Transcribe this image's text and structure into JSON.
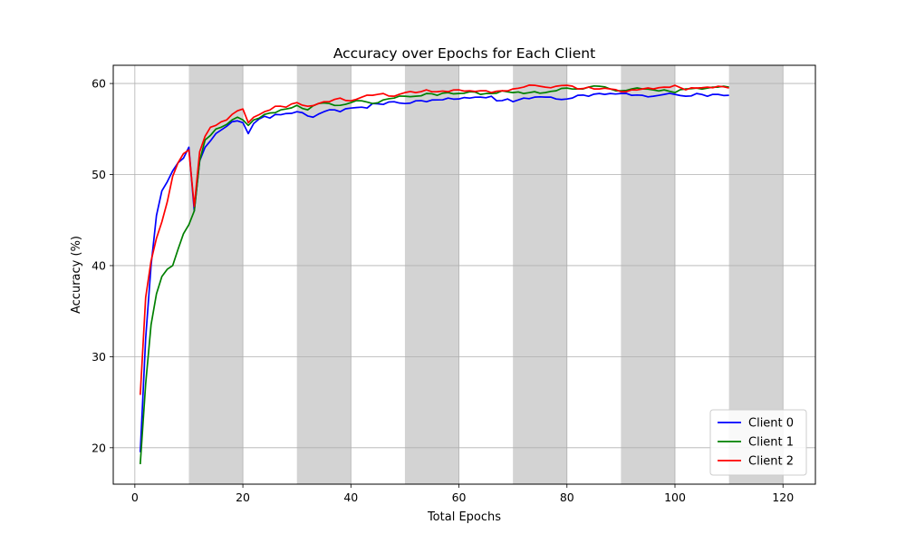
{
  "chart_data": {
    "type": "line",
    "title": "Accuracy over Epochs for Each Client",
    "xlabel": "Total Epochs",
    "ylabel": "Accuracy (%)",
    "xlim": [
      -4,
      126
    ],
    "ylim": [
      16,
      62
    ],
    "xticks": [
      0,
      20,
      40,
      60,
      80,
      100,
      120
    ],
    "yticks": [
      20,
      30,
      40,
      50,
      60
    ],
    "grid": true,
    "legend_position": "bottom-right",
    "shaded_bands": [
      [
        10,
        20
      ],
      [
        30,
        40
      ],
      [
        50,
        60
      ],
      [
        70,
        80
      ],
      [
        90,
        100
      ],
      [
        110,
        120
      ]
    ],
    "shade_color": "#d3d3d3",
    "series": [
      {
        "name": "Client 0",
        "color": "#0000ff",
        "keypoints": [
          [
            1,
            19.5
          ],
          [
            2,
            32
          ],
          [
            3,
            40
          ],
          [
            4,
            45.5
          ],
          [
            5,
            48.2
          ],
          [
            6,
            49.2
          ],
          [
            7,
            50.4
          ],
          [
            8,
            51.3
          ],
          [
            9,
            51.8
          ],
          [
            10,
            53
          ],
          [
            11,
            46
          ],
          [
            12,
            51.5
          ],
          [
            13,
            53
          ],
          [
            14,
            53.7
          ],
          [
            15,
            54.5
          ],
          [
            16,
            54.9
          ],
          [
            17,
            55.3
          ],
          [
            18,
            55.8
          ],
          [
            19,
            55.9
          ],
          [
            20,
            55.7
          ],
          [
            21,
            54.5
          ],
          [
            22,
            55.6
          ],
          [
            23,
            56.1
          ],
          [
            24,
            56.4
          ],
          [
            25,
            56.2
          ],
          [
            26,
            56.6
          ],
          [
            28,
            56.7
          ],
          [
            30,
            56.9
          ],
          [
            31,
            56.8
          ],
          [
            33,
            56.3
          ],
          [
            35,
            56.9
          ],
          [
            37,
            57.1
          ],
          [
            38,
            56.9
          ],
          [
            40,
            57.3
          ],
          [
            42,
            57.4
          ],
          [
            43,
            57.3
          ],
          [
            44,
            57.8
          ],
          [
            46,
            57.7
          ],
          [
            48,
            58.0
          ],
          [
            50,
            57.8
          ],
          [
            52,
            58.1
          ],
          [
            54,
            58.0
          ],
          [
            56,
            58.2
          ],
          [
            58,
            58.4
          ],
          [
            60,
            58.3
          ],
          [
            62,
            58.4
          ],
          [
            64,
            58.5
          ],
          [
            66,
            58.6
          ],
          [
            67,
            58.1
          ],
          [
            69,
            58.3
          ],
          [
            70,
            58.0
          ],
          [
            72,
            58.4
          ],
          [
            74,
            58.5
          ],
          [
            76,
            58.5
          ],
          [
            78,
            58.3
          ],
          [
            80,
            58.3
          ],
          [
            82,
            58.7
          ],
          [
            84,
            58.6
          ],
          [
            86,
            58.9
          ],
          [
            88,
            58.9
          ],
          [
            90,
            58.9
          ],
          [
            92,
            58.7
          ],
          [
            94,
            58.7
          ],
          [
            96,
            58.6
          ],
          [
            98,
            58.8
          ],
          [
            100,
            58.8
          ],
          [
            102,
            58.6
          ],
          [
            104,
            58.9
          ],
          [
            106,
            58.6
          ],
          [
            108,
            58.8
          ],
          [
            110,
            58.7
          ]
        ]
      },
      {
        "name": "Client 1",
        "color": "#008000",
        "keypoints": [
          [
            1,
            18.2
          ],
          [
            2,
            27
          ],
          [
            3,
            33.5
          ],
          [
            4,
            36.9
          ],
          [
            5,
            38.8
          ],
          [
            6,
            39.6
          ],
          [
            7,
            40.0
          ],
          [
            8,
            41.8
          ],
          [
            9,
            43.5
          ],
          [
            10,
            44.5
          ],
          [
            11,
            46
          ],
          [
            12,
            51.5
          ],
          [
            13,
            53.8
          ],
          [
            14,
            54.3
          ],
          [
            15,
            55
          ],
          [
            16,
            55.2
          ],
          [
            17,
            55.5
          ],
          [
            18,
            56.0
          ],
          [
            19,
            56.3
          ],
          [
            20,
            56
          ],
          [
            21,
            55.4
          ],
          [
            22,
            56.0
          ],
          [
            24,
            56.6
          ],
          [
            26,
            56.8
          ],
          [
            28,
            57.2
          ],
          [
            30,
            57.6
          ],
          [
            32,
            57.1
          ],
          [
            34,
            57.8
          ],
          [
            36,
            57.8
          ],
          [
            38,
            57.6
          ],
          [
            40,
            57.9
          ],
          [
            42,
            58.1
          ],
          [
            44,
            57.8
          ],
          [
            46,
            58.2
          ],
          [
            48,
            58.4
          ],
          [
            50,
            58.6
          ],
          [
            52,
            58.6
          ],
          [
            54,
            58.9
          ],
          [
            56,
            58.7
          ],
          [
            58,
            59.0
          ],
          [
            60,
            58.9
          ],
          [
            62,
            59.1
          ],
          [
            64,
            58.8
          ],
          [
            66,
            58.9
          ],
          [
            68,
            59.2
          ],
          [
            70,
            59.0
          ],
          [
            72,
            58.9
          ],
          [
            74,
            59.1
          ],
          [
            76,
            59.0
          ],
          [
            78,
            59.2
          ],
          [
            80,
            59.5
          ],
          [
            82,
            59.4
          ],
          [
            84,
            59.6
          ],
          [
            86,
            59.7
          ],
          [
            88,
            59.4
          ],
          [
            90,
            59.2
          ],
          [
            92,
            59.4
          ],
          [
            94,
            59.4
          ],
          [
            96,
            59.3
          ],
          [
            98,
            59.3
          ],
          [
            100,
            59.0
          ],
          [
            102,
            59.4
          ],
          [
            104,
            59.5
          ],
          [
            106,
            59.5
          ],
          [
            108,
            59.6
          ],
          [
            110,
            59.6
          ]
        ]
      },
      {
        "name": "Client 2",
        "color": "#ff0000",
        "keypoints": [
          [
            1,
            25.8
          ],
          [
            2,
            36.5
          ],
          [
            3,
            40.5
          ],
          [
            4,
            43
          ],
          [
            5,
            44.8
          ],
          [
            6,
            47
          ],
          [
            7,
            49.8
          ],
          [
            8,
            51.3
          ],
          [
            9,
            52.3
          ],
          [
            10,
            52.7
          ],
          [
            11,
            46.5
          ],
          [
            12,
            52.5
          ],
          [
            13,
            54.2
          ],
          [
            14,
            55.2
          ],
          [
            15,
            55.4
          ],
          [
            16,
            55.8
          ],
          [
            17,
            56
          ],
          [
            18,
            56.6
          ],
          [
            19,
            57.0
          ],
          [
            20,
            57.2
          ],
          [
            21,
            55.7
          ],
          [
            22,
            56.3
          ],
          [
            24,
            56.9
          ],
          [
            26,
            57.5
          ],
          [
            28,
            57.4
          ],
          [
            30,
            57.9
          ],
          [
            32,
            57.5
          ],
          [
            34,
            57.8
          ],
          [
            36,
            58.0
          ],
          [
            38,
            58.4
          ],
          [
            40,
            58.1
          ],
          [
            42,
            58.5
          ],
          [
            44,
            58.7
          ],
          [
            46,
            58.9
          ],
          [
            48,
            58.6
          ],
          [
            50,
            59.0
          ],
          [
            52,
            59.0
          ],
          [
            54,
            59.3
          ],
          [
            56,
            59.1
          ],
          [
            58,
            59.1
          ],
          [
            60,
            59.3
          ],
          [
            62,
            59.2
          ],
          [
            64,
            59.2
          ],
          [
            66,
            59.0
          ],
          [
            68,
            59.2
          ],
          [
            70,
            59.4
          ],
          [
            72,
            59.6
          ],
          [
            74,
            59.8
          ],
          [
            76,
            59.6
          ],
          [
            78,
            59.7
          ],
          [
            80,
            59.8
          ],
          [
            82,
            59.4
          ],
          [
            84,
            59.6
          ],
          [
            86,
            59.4
          ],
          [
            88,
            59.4
          ],
          [
            90,
            59.1
          ],
          [
            92,
            59.3
          ],
          [
            94,
            59.4
          ],
          [
            96,
            59.4
          ],
          [
            98,
            59.6
          ],
          [
            100,
            59.8
          ],
          [
            102,
            59.3
          ],
          [
            104,
            59.5
          ],
          [
            106,
            59.6
          ],
          [
            108,
            59.7
          ],
          [
            110,
            59.5
          ]
        ]
      }
    ]
  }
}
